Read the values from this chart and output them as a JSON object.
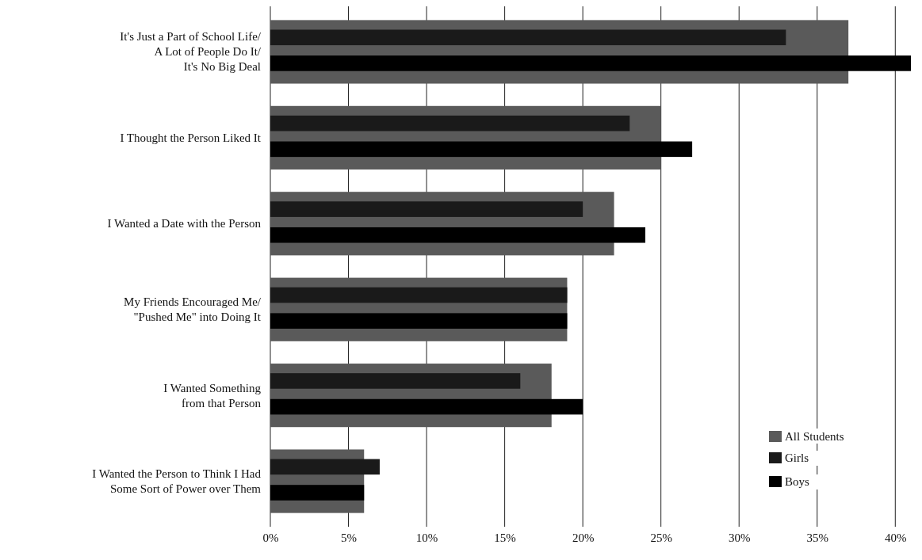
{
  "chart_data": {
    "type": "bar",
    "orientation": "horizontal",
    "categories": [
      "It's Just a Part of School Life/\nA Lot of People Do It/\nIt's No Big Deal",
      "I Thought the Person Liked It",
      "I Wanted a Date with the Person",
      "My Friends Encouraged Me/\n\"Pushed Me\" into Doing It",
      "I Wanted Something\nfrom that Person",
      "I Wanted the Person to Think I Had\nSome Sort of Power over Them"
    ],
    "series": [
      {
        "name": "All Students",
        "color": "#5a5a5a",
        "values": [
          37,
          25,
          22,
          19,
          18,
          6
        ]
      },
      {
        "name": "Girls",
        "color": "#1a1a1a",
        "values": [
          33,
          23,
          20,
          19,
          16,
          7
        ]
      },
      {
        "name": "Boys",
        "color": "#000000",
        "values": [
          41,
          27,
          24,
          19,
          20,
          6
        ]
      }
    ],
    "xlim": [
      0,
      41
    ],
    "xticks": [
      {
        "value": 0,
        "label": "0%"
      },
      {
        "value": 5,
        "label": "5%"
      },
      {
        "value": 10,
        "label": "10%"
      },
      {
        "value": 15,
        "label": "15%"
      },
      {
        "value": 20,
        "label": "20%"
      },
      {
        "value": 25,
        "label": "25%"
      },
      {
        "value": 30,
        "label": "30%"
      },
      {
        "value": 35,
        "label": "35%"
      },
      {
        "value": 40,
        "label": "40%"
      }
    ],
    "grid": "x",
    "legend": "bottom right"
  }
}
